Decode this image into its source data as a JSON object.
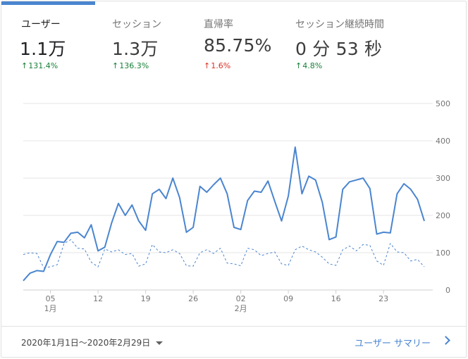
{
  "metrics": [
    {
      "label": "ユーザー",
      "value": "1.1万",
      "change": "131.4%",
      "direction": "up",
      "active": true
    },
    {
      "label": "セッション",
      "value": "1.3万",
      "change": "136.3%",
      "direction": "up",
      "active": false
    },
    {
      "label": "直帰率",
      "value": "85.75%",
      "change": "1.6%",
      "direction": "down",
      "active": false
    },
    {
      "label": "セッション継続時間",
      "value": "0 分 53 秒",
      "change": "4.8%",
      "direction": "up",
      "active": false
    }
  ],
  "footer": {
    "date_range": "2020年1月1日～2020年2月29日",
    "summary_link": "ユーザー サマリー"
  },
  "colors": {
    "accent": "#4a85d0",
    "up": "#188038",
    "down": "#d93025"
  },
  "chart_data": {
    "type": "line",
    "ylim": [
      0,
      500
    ],
    "y_ticks": [
      "500",
      "400",
      "300",
      "200",
      "100",
      "0"
    ],
    "grid": true,
    "x_ticks": [
      {
        "day": 5,
        "label": "05",
        "sublabel": "1月"
      },
      {
        "day": 12,
        "label": "12",
        "sublabel": ""
      },
      {
        "day": 19,
        "label": "19",
        "sublabel": ""
      },
      {
        "day": 26,
        "label": "26",
        "sublabel": ""
      },
      {
        "day": 33,
        "label": "02",
        "sublabel": "2月"
      },
      {
        "day": 40,
        "label": "09",
        "sublabel": ""
      },
      {
        "day": 47,
        "label": "16",
        "sublabel": ""
      },
      {
        "day": 54,
        "label": "23",
        "sublabel": ""
      }
    ],
    "series": [
      {
        "style": "solid",
        "values": [
          25,
          45,
          52,
          50,
          95,
          130,
          128,
          152,
          155,
          140,
          175,
          105,
          115,
          180,
          232,
          200,
          228,
          185,
          160,
          258,
          270,
          245,
          300,
          248,
          155,
          168,
          278,
          262,
          282,
          300,
          258,
          168,
          162,
          240,
          265,
          262,
          292,
          238,
          185,
          252,
          383,
          258,
          305,
          295,
          235,
          135,
          142,
          270,
          290,
          295,
          300,
          272,
          150,
          155,
          153,
          258,
          285,
          270,
          243,
          185
        ]
      },
      {
        "style": "dashed",
        "values": [
          95,
          100,
          98,
          60,
          62,
          68,
          125,
          135,
          112,
          110,
          75,
          62,
          110,
          102,
          108,
          95,
          98,
          64,
          70,
          122,
          102,
          100,
          108,
          98,
          65,
          64,
          100,
          108,
          98,
          112,
          72,
          70,
          65,
          112,
          108,
          92,
          98,
          102,
          70,
          66,
          108,
          118,
          108,
          102,
          88,
          70,
          66,
          108,
          118,
          105,
          122,
          120,
          78,
          66,
          125,
          102,
          100,
          78,
          82,
          62
        ]
      }
    ]
  }
}
